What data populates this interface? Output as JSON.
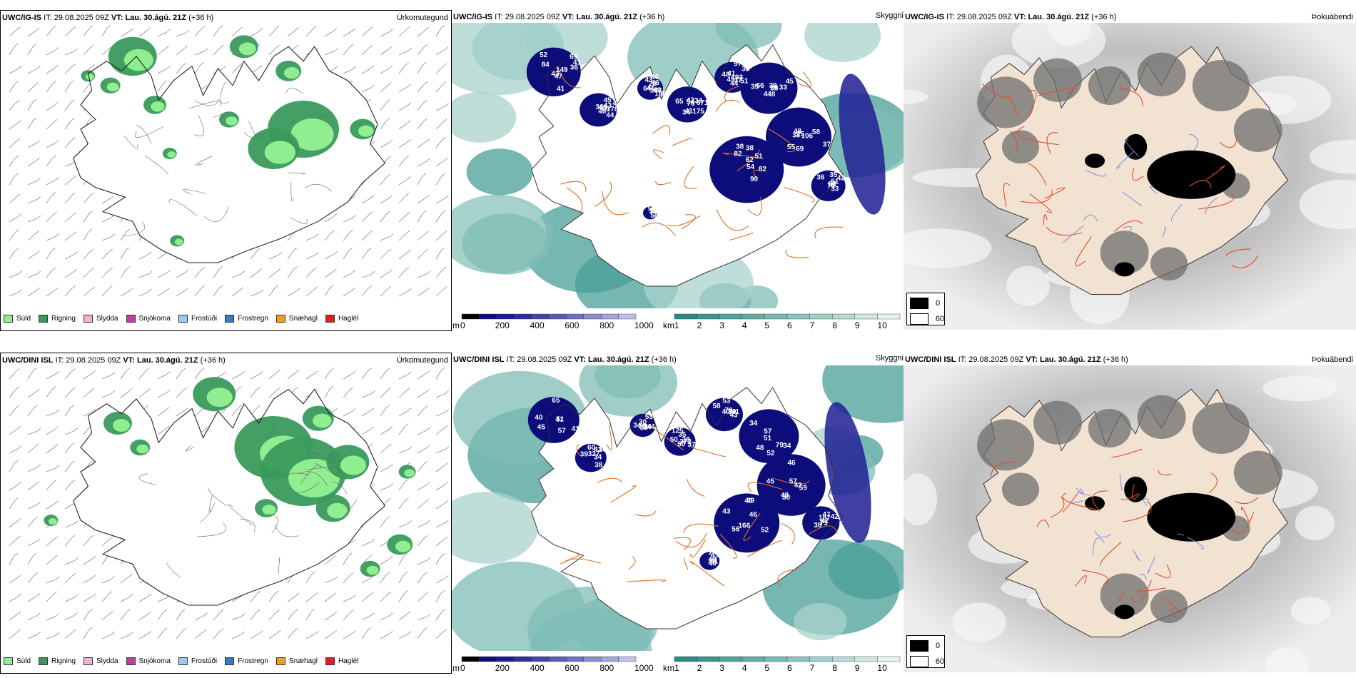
{
  "rows": [
    {
      "model": "UWC/IG-IS",
      "it_label": "IT:",
      "it_value": "29.08.2025 09Z",
      "vt_label": "VT:",
      "vt_value": "Lau. 30.ágú. 21Z",
      "lead": "(+36 h)"
    },
    {
      "model": "UWC/DINI ISL",
      "it_label": "IT:",
      "it_value": "29.08.2025 09Z",
      "vt_label": "VT:",
      "vt_value": "Lau. 30.ágú. 21Z",
      "lead": "(+36 h)"
    }
  ],
  "panel_types": {
    "precip": "Úrkomutegund",
    "visibility": "Skyggni",
    "fog": "Þokuábendi"
  },
  "precip_legend": [
    {
      "label": "Súld",
      "color": "#90ee90"
    },
    {
      "label": "Rigning",
      "color": "#3a9a5c"
    },
    {
      "label": "Slydda",
      "color": "#f4b0d8"
    },
    {
      "label": "Snjókoma",
      "color": "#c0409a"
    },
    {
      "label": "Frostúði",
      "color": "#9ec8f0"
    },
    {
      "label": "Frostregn",
      "color": "#3a78c8"
    },
    {
      "label": "Snæhagl",
      "color": "#f0a020"
    },
    {
      "label": "Haglél",
      "color": "#e02020"
    }
  ],
  "visibility_legend": {
    "m_unit": "m",
    "m_ticks": [
      "0",
      "200",
      "400",
      "600",
      "800",
      "1000"
    ],
    "km_unit": "km",
    "km_ticks": [
      "1",
      "2",
      "3",
      "4",
      "5",
      "6",
      "7",
      "8",
      "9",
      "10"
    ],
    "m_colors": [
      "#000000",
      "#0c0c7a",
      "#1c1c90",
      "#2e2e9c",
      "#4444a8",
      "#5a5ab4",
      "#7070c0",
      "#8a8acc",
      "#a4a4d8",
      "#c0c0e6"
    ],
    "km_colors": [
      "#2a8a84",
      "#3c968f",
      "#50a29a",
      "#64ada5",
      "#78b8b0",
      "#8cc3bc",
      "#a2cfc8",
      "#b8dad4",
      "#d0e6e2",
      "#e8f2f0"
    ]
  },
  "fog_legend": [
    {
      "label": "0",
      "color": "#000000"
    },
    {
      "label": "60",
      "color": "#ffffff"
    }
  ],
  "vis_labels_top": [
    "43",
    "43",
    "28",
    "34",
    "45",
    "45",
    "55",
    "54",
    "42",
    "50",
    "47",
    "45",
    "46",
    "34",
    "51",
    "66",
    "69",
    "82",
    "60",
    "38",
    "41",
    "36",
    "188",
    "175",
    "41",
    "39",
    "37",
    "38",
    "36",
    "37",
    "41",
    "40",
    "49",
    "54",
    "37",
    "33",
    "58",
    "82",
    "51",
    "57",
    "52",
    "60",
    "64",
    "65",
    "38",
    "38",
    "48",
    "62",
    "70",
    "56",
    "69",
    "48",
    "46",
    "42",
    "44",
    "35",
    "38",
    "38",
    "35",
    "54",
    "36",
    "43",
    "41",
    "76",
    "193",
    "79",
    "106",
    "90",
    "87",
    "160",
    "149",
    "178",
    "183",
    "671",
    "97",
    "448",
    "75",
    "51",
    "33",
    "88",
    "84",
    "44",
    "43",
    "41",
    "48"
  ],
  "vis_labels_bottom": [
    "45",
    "39",
    "30",
    "38",
    "41",
    "34",
    "45",
    "52",
    "47",
    "41",
    "57",
    "58",
    "34",
    "125",
    "79",
    "34",
    "46",
    "46",
    "42",
    "41",
    "47",
    "43",
    "46",
    "50",
    "58",
    "52",
    "57",
    "43",
    "73",
    "36",
    "51",
    "60",
    "53",
    "50",
    "53",
    "51",
    "42",
    "39",
    "38",
    "40",
    "41",
    "38",
    "38",
    "37",
    "43",
    "57",
    "59",
    "56",
    "42",
    "49",
    "40",
    "34",
    "38",
    "35",
    "39",
    "48",
    "50",
    "166",
    "187",
    "242",
    "65",
    "327",
    "244",
    "372",
    "40",
    "79",
    "48",
    "46"
  ]
}
